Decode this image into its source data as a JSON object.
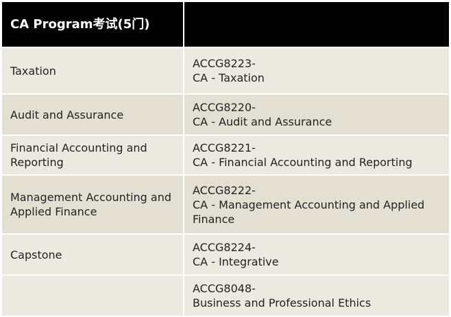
{
  "table": {
    "headers": [
      "CA Program考试(5门)",
      ""
    ],
    "rows": [
      {
        "subject": "Taxation",
        "code": "ACCG8223-",
        "course": "CA - Taxation"
      },
      {
        "subject": "Audit and Assurance",
        "code": "ACCG8220-",
        "course": "CA - Audit and Assurance"
      },
      {
        "subject": "Financial Accounting and Reporting",
        "code": "ACCG8221-",
        "course": "CA - Financial Accounting and Reporting"
      },
      {
        "subject": "Management Accounting and Applied Finance",
        "code": "ACCG8222-",
        "course": "CA - Management Accounting and Applied Finance"
      },
      {
        "subject": "Capstone",
        "code": "ACCG8224-",
        "course": "CA - Integrative"
      },
      {
        "subject": "",
        "code": "ACCG8048-",
        "course": "Business and Professional Ethics"
      }
    ]
  },
  "colors": {
    "header_bg": "#000000",
    "row_light": "#ece9e0",
    "row_dark": "#e3dfd2"
  }
}
